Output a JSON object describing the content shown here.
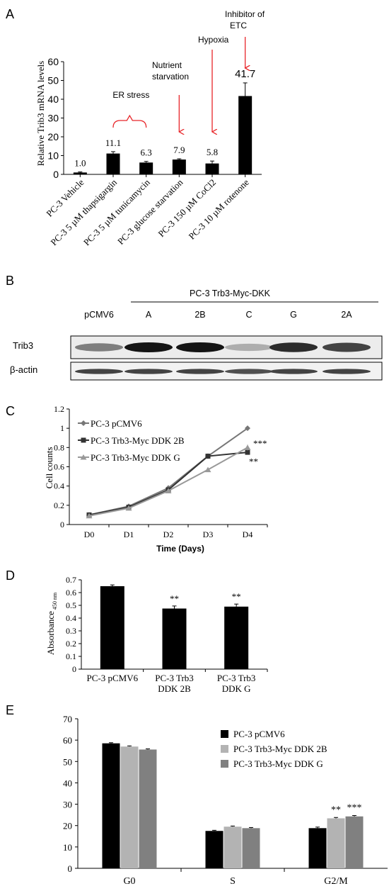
{
  "panels": [
    {
      "letter": "A",
      "chart_data": {
        "type": "bar",
        "ylabel": "Relative Trib3 mRNA levels",
        "ylim": [
          0,
          60
        ],
        "yticks": [
          0,
          10,
          20,
          30,
          40,
          50,
          60
        ],
        "categories": [
          "PC-3 Vehicle",
          "PC-3 5 µM thapsigargin",
          "PC-3 5 µM tunicamycin",
          "PC-3 glucose starvation",
          "PC-3 150 µM CoCl2",
          "PC-3 10 µM rotenone"
        ],
        "values": [
          1.0,
          11.1,
          6.3,
          7.9,
          5.8,
          41.7
        ],
        "errors": [
          0.3,
          1.0,
          0.6,
          0.4,
          1.3,
          7.0
        ],
        "data_labels": [
          "1.0",
          "11.1",
          "6.3",
          "7.9",
          "5.8",
          "41.7"
        ],
        "colors": {
          "bar": "#000000",
          "arrow": "#e8262a"
        },
        "annotations": [
          {
            "text": "ER stress",
            "target": [
              1,
              2
            ]
          },
          {
            "text": "Nutrient starvation",
            "target": [
              3
            ]
          },
          {
            "text": "Hypoxia",
            "target": [
              4
            ]
          },
          {
            "text": "Inhibitor of ETC",
            "target": [
              5
            ]
          }
        ]
      }
    },
    {
      "letter": "B",
      "blot": {
        "group_label": "PC-3 Trb3-Myc-DKK",
        "lanes": [
          "pCMV6",
          "A",
          "2B",
          "C",
          "G",
          "2A"
        ],
        "rows": [
          {
            "label": "Trib3",
            "intensity": [
              0.55,
              1.0,
              1.0,
              0.35,
              0.9,
              0.8
            ]
          },
          {
            "label": "β-actin",
            "intensity": [
              0.8,
              0.8,
              0.8,
              0.75,
              0.8,
              0.8
            ]
          }
        ]
      }
    },
    {
      "letter": "C",
      "chart_data": {
        "type": "line",
        "ylabel": "Cell counts",
        "xlabel": "Time (Days)",
        "x": [
          "D0",
          "D1",
          "D2",
          "D3",
          "D4"
        ],
        "ylim": [
          0,
          1.2
        ],
        "yticks": [
          "0",
          "0.2",
          "0.4",
          "0.6",
          "0.8",
          "1",
          "1.2"
        ],
        "series": [
          {
            "name": "PC-3 pCMV6",
            "values": [
              0.1,
              0.19,
              0.38,
              0.71,
              1.0
            ],
            "errors": [
              0.01,
              0.01,
              0.01,
              0.01,
              0.015
            ],
            "color": "#777777",
            "marker": "diamond"
          },
          {
            "name": "PC-3 Trb3-Myc DDK 2B",
            "values": [
              0.1,
              0.18,
              0.36,
              0.71,
              0.75
            ],
            "errors": [
              0.01,
              0.01,
              0.01,
              0.01,
              0.02
            ],
            "color": "#333333",
            "marker": "square"
          },
          {
            "name": "PC-3 Trb3-Myc DDK G",
            "values": [
              0.09,
              0.17,
              0.35,
              0.57,
              0.8
            ],
            "errors": [
              0.01,
              0.01,
              0.01,
              0.02,
              0.03
            ],
            "color": "#999999",
            "marker": "triangle"
          }
        ],
        "significance": [
          {
            "text": "***",
            "series": 1
          },
          {
            "text": "**",
            "series": 2
          }
        ],
        "legend": "top-left"
      }
    },
    {
      "letter": "D",
      "chart_data": {
        "type": "bar",
        "ylabel_main": "Absorbance",
        "ylabel_sub": "450 nm",
        "ylim": [
          0,
          0.7
        ],
        "yticks": [
          "0",
          "0.1",
          "0.2",
          "0.3",
          "0.4",
          "0.5",
          "0.6",
          "0.7"
        ],
        "categories": [
          [
            "PC-3 pCMV6"
          ],
          [
            "PC-3 Trb3",
            "DDK 2B"
          ],
          [
            "PC-3 Trb3",
            "DDK G"
          ]
        ],
        "values": [
          0.65,
          0.475,
          0.49
        ],
        "errors": [
          0.01,
          0.02,
          0.02
        ],
        "significance": [
          "",
          "**",
          "**"
        ],
        "colors": {
          "bar": "#000000"
        }
      }
    },
    {
      "letter": "E",
      "chart_data": {
        "type": "bar",
        "ylim": [
          0,
          70
        ],
        "yticks": [
          0,
          10,
          20,
          30,
          40,
          50,
          60,
          70
        ],
        "categories": [
          "G0",
          "S",
          "G2/M"
        ],
        "series": [
          {
            "name": "PC-3 pCMV6",
            "values": [
              58.5,
              17.5,
              18.8
            ],
            "errors": [
              0.3,
              0.3,
              0.5
            ],
            "color": "#000000"
          },
          {
            "name": "PC-3 Trb3-Myc DDK 2B",
            "values": [
              57.0,
              19.5,
              23.4
            ],
            "errors": [
              0.3,
              0.3,
              0.4
            ],
            "color": "#b3b3b3"
          },
          {
            "name": "PC-3 Trb3-Myc DDK G",
            "values": [
              55.6,
              18.8,
              24.3
            ],
            "errors": [
              0.3,
              0.3,
              0.4
            ],
            "color": "#808080"
          }
        ],
        "significance": [
          {
            "text": "**",
            "series": 1,
            "category": 2
          },
          {
            "text": "***",
            "series": 2,
            "category": 2
          }
        ],
        "legend": "top-right"
      }
    }
  ]
}
